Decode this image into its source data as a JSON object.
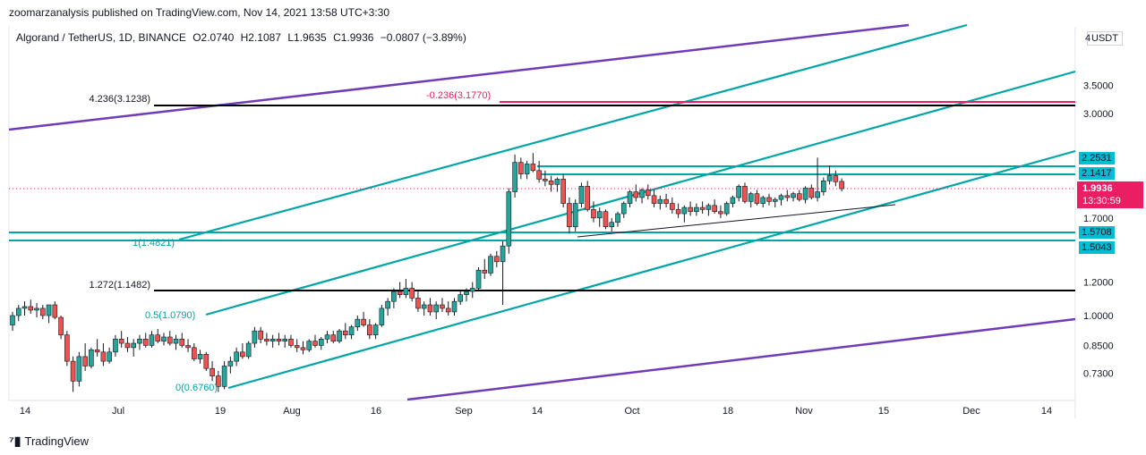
{
  "header": "zoomarzanalysis published on TradingView.com, Nov 14, 2021 13:58 UTC+3:30",
  "symbol_line": "Algorand / TetherUS, 1D, BINANCE",
  "ohlc": {
    "open": "O2.0740",
    "high": "H2.1087",
    "low": "L1.9635",
    "close": "C1.9936",
    "change": "−0.0807 (−3.89%)"
  },
  "currency": "USDT",
  "footer": "TradingView",
  "colors": {
    "up": "#26a69a",
    "down": "#ef5350",
    "teal": "#00a5a5",
    "purple": "#6f3bb8",
    "magenta": "#e91e63",
    "black": "#000000",
    "price_badge": "#e91e63"
  },
  "chart_data": {
    "type": "candlestick",
    "symbol": "Algorand / TetherUS",
    "exchange": "BINANCE",
    "interval": "1D",
    "y_scale": "log",
    "y_ticks": [
      "0.7300",
      "0.8500",
      "1.0000",
      "1.2000",
      "1.7000",
      "3.0000",
      "3.5000",
      "4"
    ],
    "x_ticks": [
      "14",
      "Jul",
      "19",
      "Aug",
      "16",
      "Sep",
      "14",
      "Oct",
      "18",
      "Nov",
      "15",
      "Dec",
      "14"
    ],
    "last_price": "1.9936",
    "countdown": "13:30:59",
    "levels": [
      {
        "label": "4.236(3.1238)",
        "value": 3.1238,
        "color": "black"
      },
      {
        "label": "-0.236(3.1770)",
        "value": 3.177,
        "color": "magenta"
      },
      {
        "label": "1.272(1.1482)",
        "value": 1.1482,
        "color": "black"
      },
      {
        "label": "1(1.4821)",
        "value": 1.4821,
        "color": "teal"
      },
      {
        "label": "0.5(1.0790)",
        "value": 1.079,
        "color": "teal"
      },
      {
        "label": "0(0.6760)",
        "value": 0.676,
        "color": "teal"
      }
    ],
    "price_badges": [
      "2.2531",
      "2.1417",
      "1.5708",
      "1.5043"
    ],
    "candles": [
      [
        0.95,
        1.02,
        0.92,
        1.0
      ],
      [
        1.0,
        1.06,
        0.97,
        1.04
      ],
      [
        1.04,
        1.08,
        1.0,
        1.05
      ],
      [
        1.05,
        1.09,
        1.01,
        1.03
      ],
      [
        1.03,
        1.07,
        0.99,
        1.04
      ],
      [
        1.04,
        1.06,
        0.98,
        1.0
      ],
      [
        1.0,
        1.05,
        0.96,
        1.06
      ],
      [
        1.06,
        1.08,
        0.98,
        0.99
      ],
      [
        0.99,
        1.0,
        0.88,
        0.9
      ],
      [
        0.9,
        0.92,
        0.76,
        0.78
      ],
      [
        0.78,
        0.8,
        0.66,
        0.7
      ],
      [
        0.7,
        0.82,
        0.68,
        0.8
      ],
      [
        0.8,
        0.86,
        0.74,
        0.76
      ],
      [
        0.76,
        0.84,
        0.75,
        0.83
      ],
      [
        0.83,
        0.88,
        0.8,
        0.82
      ],
      [
        0.82,
        0.86,
        0.76,
        0.78
      ],
      [
        0.78,
        0.84,
        0.77,
        0.82
      ],
      [
        0.82,
        0.9,
        0.8,
        0.88
      ],
      [
        0.88,
        0.92,
        0.84,
        0.86
      ],
      [
        0.86,
        0.89,
        0.82,
        0.84
      ],
      [
        0.84,
        0.88,
        0.8,
        0.86
      ],
      [
        0.86,
        0.9,
        0.83,
        0.88
      ],
      [
        0.88,
        0.91,
        0.84,
        0.85
      ],
      [
        0.85,
        0.92,
        0.84,
        0.9
      ],
      [
        0.9,
        0.93,
        0.86,
        0.87
      ],
      [
        0.87,
        0.91,
        0.85,
        0.89
      ],
      [
        0.89,
        0.92,
        0.85,
        0.86
      ],
      [
        0.86,
        0.9,
        0.83,
        0.88
      ],
      [
        0.88,
        0.91,
        0.84,
        0.85
      ],
      [
        0.85,
        0.88,
        0.82,
        0.84
      ],
      [
        0.84,
        0.86,
        0.78,
        0.79
      ],
      [
        0.79,
        0.83,
        0.77,
        0.81
      ],
      [
        0.81,
        0.82,
        0.74,
        0.75
      ],
      [
        0.75,
        0.78,
        0.7,
        0.72
      ],
      [
        0.72,
        0.74,
        0.66,
        0.68
      ],
      [
        0.68,
        0.78,
        0.67,
        0.76
      ],
      [
        0.76,
        0.8,
        0.73,
        0.78
      ],
      [
        0.78,
        0.84,
        0.76,
        0.82
      ],
      [
        0.82,
        0.86,
        0.79,
        0.8
      ],
      [
        0.8,
        0.87,
        0.79,
        0.86
      ],
      [
        0.86,
        0.94,
        0.84,
        0.92
      ],
      [
        0.92,
        0.94,
        0.86,
        0.88
      ],
      [
        0.88,
        0.91,
        0.85,
        0.87
      ],
      [
        0.87,
        0.9,
        0.84,
        0.88
      ],
      [
        0.88,
        0.91,
        0.85,
        0.87
      ],
      [
        0.87,
        0.9,
        0.84,
        0.88
      ],
      [
        0.88,
        0.9,
        0.84,
        0.85
      ],
      [
        0.85,
        0.88,
        0.82,
        0.84
      ],
      [
        0.84,
        0.87,
        0.81,
        0.83
      ],
      [
        0.83,
        0.88,
        0.82,
        0.87
      ],
      [
        0.87,
        0.9,
        0.84,
        0.85
      ],
      [
        0.85,
        0.89,
        0.83,
        0.88
      ],
      [
        0.88,
        0.92,
        0.86,
        0.9
      ],
      [
        0.9,
        0.92,
        0.86,
        0.87
      ],
      [
        0.87,
        0.93,
        0.86,
        0.92
      ],
      [
        0.92,
        0.96,
        0.88,
        0.9
      ],
      [
        0.9,
        0.95,
        0.88,
        0.94
      ],
      [
        0.94,
        1.0,
        0.92,
        0.98
      ],
      [
        0.98,
        1.02,
        0.94,
        0.95
      ],
      [
        0.95,
        0.98,
        0.88,
        0.9
      ],
      [
        0.9,
        0.96,
        0.88,
        0.95
      ],
      [
        0.95,
        1.06,
        0.94,
        1.04
      ],
      [
        1.04,
        1.1,
        1.0,
        1.08
      ],
      [
        1.08,
        1.16,
        1.04,
        1.14
      ],
      [
        1.14,
        1.2,
        1.1,
        1.12
      ],
      [
        1.12,
        1.22,
        1.1,
        1.16
      ],
      [
        1.16,
        1.2,
        1.08,
        1.1
      ],
      [
        1.1,
        1.14,
        1.02,
        1.04
      ],
      [
        1.04,
        1.08,
        1.0,
        1.06
      ],
      [
        1.06,
        1.1,
        1.0,
        1.02
      ],
      [
        1.02,
        1.08,
        0.98,
        1.06
      ],
      [
        1.06,
        1.1,
        1.02,
        1.04
      ],
      [
        1.04,
        1.08,
        1.0,
        1.02
      ],
      [
        1.02,
        1.1,
        1.0,
        1.08
      ],
      [
        1.08,
        1.14,
        1.06,
        1.12
      ],
      [
        1.12,
        1.16,
        1.08,
        1.14
      ],
      [
        1.14,
        1.2,
        1.1,
        1.16
      ],
      [
        1.16,
        1.3,
        1.14,
        1.28
      ],
      [
        1.28,
        1.36,
        1.22,
        1.26
      ],
      [
        1.26,
        1.4,
        1.24,
        1.38
      ],
      [
        1.38,
        1.42,
        1.3,
        1.34
      ],
      [
        1.34,
        1.5,
        1.06,
        1.46
      ],
      [
        1.46,
        2.0,
        1.4,
        1.96
      ],
      [
        1.96,
        2.4,
        1.9,
        2.3
      ],
      [
        2.3,
        2.36,
        2.1,
        2.16
      ],
      [
        2.16,
        2.32,
        2.1,
        2.28
      ],
      [
        2.28,
        2.42,
        2.18,
        2.2
      ],
      [
        2.2,
        2.32,
        2.06,
        2.1
      ],
      [
        2.1,
        2.2,
        2.02,
        2.08
      ],
      [
        2.08,
        2.14,
        1.96,
        2.04
      ],
      [
        2.04,
        2.12,
        1.96,
        2.1
      ],
      [
        2.1,
        2.16,
        1.8,
        1.84
      ],
      [
        1.84,
        1.9,
        1.56,
        1.62
      ],
      [
        1.62,
        1.88,
        1.58,
        1.84
      ],
      [
        1.84,
        2.06,
        1.8,
        2.02
      ],
      [
        2.02,
        2.08,
        1.76,
        1.78
      ],
      [
        1.78,
        1.86,
        1.66,
        1.7
      ],
      [
        1.7,
        1.8,
        1.62,
        1.76
      ],
      [
        1.76,
        1.78,
        1.6,
        1.62
      ],
      [
        1.62,
        1.7,
        1.58,
        1.66
      ],
      [
        1.66,
        1.76,
        1.62,
        1.74
      ],
      [
        1.74,
        1.86,
        1.7,
        1.84
      ],
      [
        1.84,
        1.98,
        1.8,
        1.96
      ],
      [
        1.96,
        2.04,
        1.86,
        1.9
      ],
      [
        1.9,
        2.0,
        1.84,
        1.98
      ],
      [
        1.98,
        2.04,
        1.88,
        1.92
      ],
      [
        1.92,
        1.98,
        1.8,
        1.84
      ],
      [
        1.84,
        1.92,
        1.78,
        1.88
      ],
      [
        1.88,
        1.94,
        1.8,
        1.84
      ],
      [
        1.84,
        1.9,
        1.74,
        1.78
      ],
      [
        1.78,
        1.84,
        1.7,
        1.74
      ],
      [
        1.74,
        1.82,
        1.66,
        1.8
      ],
      [
        1.8,
        1.86,
        1.72,
        1.76
      ],
      [
        1.76,
        1.84,
        1.72,
        1.8
      ],
      [
        1.8,
        1.86,
        1.74,
        1.78
      ],
      [
        1.78,
        1.84,
        1.72,
        1.82
      ],
      [
        1.82,
        1.88,
        1.74,
        1.76
      ],
      [
        1.76,
        1.82,
        1.7,
        1.74
      ],
      [
        1.74,
        1.86,
        1.72,
        1.84
      ],
      [
        1.84,
        1.92,
        1.8,
        1.9
      ],
      [
        1.9,
        2.04,
        1.86,
        2.02
      ],
      [
        2.02,
        2.06,
        1.84,
        1.86
      ],
      [
        1.86,
        1.96,
        1.8,
        1.94
      ],
      [
        1.94,
        1.98,
        1.82,
        1.84
      ],
      [
        1.84,
        1.92,
        1.8,
        1.9
      ],
      [
        1.9,
        1.94,
        1.82,
        1.86
      ],
      [
        1.86,
        1.9,
        1.8,
        1.88
      ],
      [
        1.88,
        1.94,
        1.82,
        1.92
      ],
      [
        1.92,
        1.98,
        1.86,
        1.9
      ],
      [
        1.9,
        1.96,
        1.86,
        1.94
      ],
      [
        1.94,
        1.98,
        1.86,
        1.88
      ],
      [
        1.88,
        2.02,
        1.84,
        2.0
      ],
      [
        2.0,
        2.04,
        1.88,
        1.9
      ],
      [
        1.9,
        2.36,
        1.86,
        1.96
      ],
      [
        1.96,
        2.12,
        1.92,
        2.08
      ],
      [
        2.08,
        2.26,
        2.04,
        2.14
      ],
      [
        2.14,
        2.2,
        2.02,
        2.07
      ],
      [
        2.074,
        2.1087,
        1.9635,
        1.9936
      ]
    ]
  }
}
